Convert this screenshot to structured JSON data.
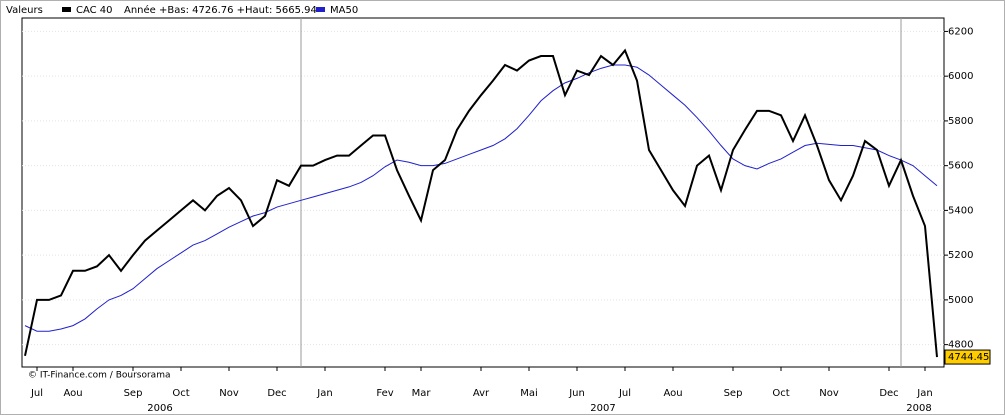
{
  "chart_data": {
    "type": "line",
    "legend_title": "Valeurs",
    "legend_note": "Année +Bas: 4726.76 +Haut: 5665.94",
    "credit": "© IT-Finance.com / Boursorama",
    "categories": [
      null,
      "Jul",
      null,
      null,
      "Aou",
      null,
      null,
      null,
      null,
      "Sep",
      null,
      null,
      null,
      "Oct",
      null,
      null,
      null,
      "Nov",
      null,
      null,
      null,
      "Dec",
      null,
      null,
      null,
      "Jan",
      null,
      null,
      null,
      null,
      "Fev",
      null,
      null,
      "Mar",
      null,
      null,
      null,
      null,
      "Avr",
      null,
      null,
      null,
      "Mai",
      null,
      null,
      null,
      "Jun",
      null,
      null,
      null,
      "Jul",
      null,
      null,
      null,
      "Aou",
      null,
      null,
      null,
      null,
      "Sep",
      null,
      null,
      null,
      "Oct",
      null,
      null,
      null,
      "Nov",
      null,
      null,
      null,
      null,
      "Dec",
      null,
      null,
      "Jan",
      null
    ],
    "years": [
      "2006",
      "2007",
      "2008"
    ],
    "series": [
      {
        "name": "CAC 40",
        "color": "#000000",
        "values": [
          4750,
          5000,
          5000,
          5020,
          5130,
          5130,
          5150,
          5200,
          5130,
          5200,
          5265,
          5310,
          5355,
          5400,
          5445,
          5400,
          5465,
          5500,
          5445,
          5330,
          5375,
          5535,
          5510,
          5600,
          5600,
          5625,
          5645,
          5645,
          5690,
          5735,
          5735,
          5580,
          5465,
          5355,
          5580,
          5625,
          5760,
          5845,
          5915,
          5980,
          6050,
          6025,
          6070,
          6090,
          6090,
          5915,
          6025,
          6005,
          6090,
          6050,
          6115,
          5980,
          5670,
          5580,
          5490,
          5420,
          5600,
          5645,
          5490,
          5670,
          5760,
          5845,
          5845,
          5825,
          5710,
          5825,
          5690,
          5535,
          5445,
          5555,
          5710,
          5670,
          5510,
          5625,
          5465,
          5330,
          4744.45
        ]
      },
      {
        "name": "MA50",
        "color": "#2020cc",
        "values": [
          4885,
          4860,
          4860,
          4870,
          4885,
          4915,
          4960,
          5000,
          5020,
          5050,
          5095,
          5140,
          5175,
          5210,
          5245,
          5265,
          5295,
          5325,
          5350,
          5375,
          5390,
          5415,
          5430,
          5445,
          5460,
          5475,
          5490,
          5505,
          5525,
          5555,
          5595,
          5625,
          5615,
          5600,
          5600,
          5610,
          5630,
          5650,
          5670,
          5690,
          5720,
          5765,
          5825,
          5890,
          5935,
          5970,
          5990,
          6015,
          6035,
          6050,
          6050,
          6040,
          6005,
          5960,
          5915,
          5870,
          5815,
          5755,
          5690,
          5630,
          5600,
          5585,
          5610,
          5630,
          5660,
          5690,
          5700,
          5695,
          5690,
          5690,
          5680,
          5670,
          5645,
          5625,
          5600,
          5555,
          5510
        ]
      }
    ],
    "ylim": [
      4700,
      6260
    ],
    "yticks": [
      4800,
      5000,
      5200,
      5400,
      5600,
      5800,
      6000,
      6200
    ],
    "grid": true
  }
}
